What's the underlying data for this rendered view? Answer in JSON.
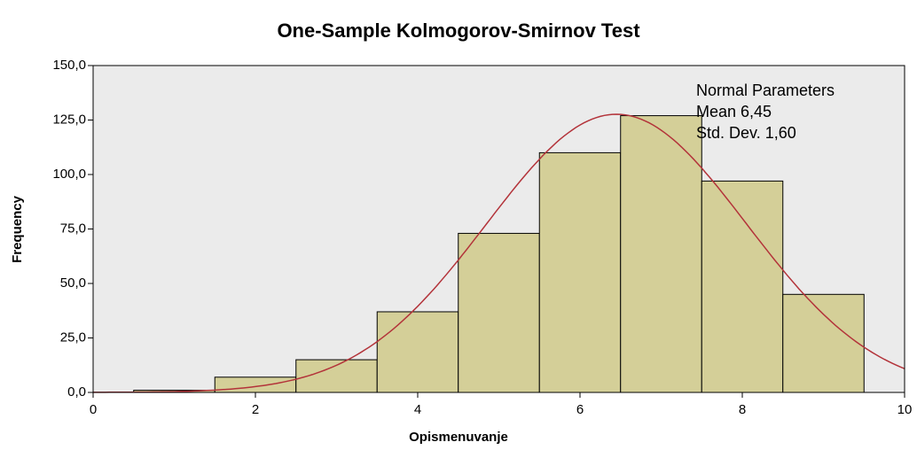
{
  "chart_data": {
    "type": "histogram",
    "title": "One-Sample Kolmogorov-Smirnov Test",
    "x_label": "Opismenuvanje",
    "y_label": "Frequency",
    "bins": [
      0.5,
      1.5,
      2.5,
      3.5,
      4.5,
      5.5,
      6.5,
      7.5,
      8.5,
      9.5
    ],
    "values": [
      1,
      7,
      15,
      37,
      73,
      110,
      127,
      97,
      45
    ],
    "color": "#d4cf98",
    "curve_color": "#b3333a",
    "background": "#ebebeb",
    "xlim": [
      0,
      10
    ],
    "xticks": [
      0,
      2,
      4,
      6,
      8,
      10
    ],
    "ylim": [
      0,
      150
    ],
    "yticks": [
      {
        "value": 0,
        "label": "0,0"
      },
      {
        "value": 25,
        "label": "25,0"
      },
      {
        "value": 50,
        "label": "50,0"
      },
      {
        "value": 75,
        "label": "75,0"
      },
      {
        "value": 100,
        "label": "100,0"
      },
      {
        "value": 125,
        "label": "125,0"
      },
      {
        "value": 150,
        "label": "150,0"
      }
    ],
    "normal": {
      "title": "Normal Parameters",
      "mean": {
        "value": 6.45,
        "label": "Mean 6,45"
      },
      "std_dev": {
        "value": 1.6,
        "label": "Std. Dev. 1,60"
      }
    }
  }
}
